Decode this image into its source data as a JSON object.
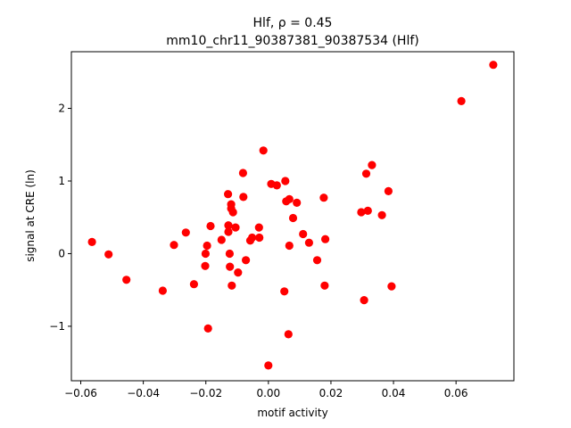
{
  "chart_data": {
    "type": "scatter",
    "title_line1": "Hlf, ρ = 0.45",
    "title_line2": "mm10_chr11_90387381_90387534 (Hlf)",
    "xlabel": "motif activity",
    "ylabel": "signal at CRE (ln)",
    "xlim": [
      -0.063,
      0.0785
    ],
    "ylim": [
      -1.75,
      2.78
    ],
    "xticks": [
      -0.06,
      -0.04,
      -0.02,
      0.0,
      0.02,
      0.04,
      0.06
    ],
    "xtick_labels": [
      "−0.06",
      "−0.04",
      "−0.02",
      "0.00",
      "0.02",
      "0.04",
      "0.06"
    ],
    "yticks": [
      -1,
      0,
      1,
      2
    ],
    "ytick_labels": [
      "−1",
      "0",
      "1",
      "2"
    ],
    "grid": false,
    "marker_color": "#ff0000",
    "points": [
      {
        "x": -0.0564,
        "y": 0.16
      },
      {
        "x": -0.0511,
        "y": -0.01
      },
      {
        "x": -0.0454,
        "y": -0.36
      },
      {
        "x": -0.0338,
        "y": -0.51
      },
      {
        "x": -0.0302,
        "y": 0.12
      },
      {
        "x": -0.0264,
        "y": 0.29
      },
      {
        "x": -0.0238,
        "y": -0.42
      },
      {
        "x": -0.0202,
        "y": -0.17
      },
      {
        "x": -0.0201,
        "y": 0.0
      },
      {
        "x": -0.0196,
        "y": 0.11
      },
      {
        "x": -0.0193,
        "y": -1.03
      },
      {
        "x": -0.0185,
        "y": 0.38
      },
      {
        "x": -0.015,
        "y": 0.19
      },
      {
        "x": -0.0129,
        "y": 0.82
      },
      {
        "x": -0.0128,
        "y": 0.39
      },
      {
        "x": -0.0128,
        "y": 0.3
      },
      {
        "x": -0.0124,
        "y": 0.0
      },
      {
        "x": -0.0123,
        "y": -0.18
      },
      {
        "x": -0.0119,
        "y": 0.68
      },
      {
        "x": -0.0119,
        "y": 0.62
      },
      {
        "x": -0.0117,
        "y": -0.44
      },
      {
        "x": -0.0113,
        "y": 0.57
      },
      {
        "x": -0.0105,
        "y": 0.36
      },
      {
        "x": -0.0097,
        "y": -0.26
      },
      {
        "x": -0.0081,
        "y": 1.11
      },
      {
        "x": -0.008,
        "y": 0.78
      },
      {
        "x": -0.0072,
        "y": -0.09
      },
      {
        "x": -0.0058,
        "y": 0.18
      },
      {
        "x": -0.0052,
        "y": 0.22
      },
      {
        "x": -0.003,
        "y": 0.36
      },
      {
        "x": -0.0029,
        "y": 0.22
      },
      {
        "x": -0.0016,
        "y": 1.42
      },
      {
        "x": 0.0,
        "y": -1.54
      },
      {
        "x": 0.0009,
        "y": 0.96
      },
      {
        "x": 0.0027,
        "y": 0.94
      },
      {
        "x": 0.0051,
        "y": -0.52
      },
      {
        "x": 0.0054,
        "y": 1.0
      },
      {
        "x": 0.0057,
        "y": 0.72
      },
      {
        "x": 0.0064,
        "y": -1.11
      },
      {
        "x": 0.0067,
        "y": 0.75
      },
      {
        "x": 0.0067,
        "y": 0.11
      },
      {
        "x": 0.0079,
        "y": 0.49
      },
      {
        "x": 0.0091,
        "y": 0.7
      },
      {
        "x": 0.0111,
        "y": 0.27
      },
      {
        "x": 0.013,
        "y": 0.15
      },
      {
        "x": 0.0156,
        "y": -0.09
      },
      {
        "x": 0.0177,
        "y": 0.77
      },
      {
        "x": 0.018,
        "y": -0.44
      },
      {
        "x": 0.0182,
        "y": 0.2
      },
      {
        "x": 0.0297,
        "y": 0.57
      },
      {
        "x": 0.0306,
        "y": -0.64
      },
      {
        "x": 0.0313,
        "y": 1.1
      },
      {
        "x": 0.0318,
        "y": 0.59
      },
      {
        "x": 0.0331,
        "y": 1.22
      },
      {
        "x": 0.0363,
        "y": 0.53
      },
      {
        "x": 0.0384,
        "y": 0.86
      },
      {
        "x": 0.0394,
        "y": -0.45
      },
      {
        "x": 0.0617,
        "y": 2.1
      },
      {
        "x": 0.0719,
        "y": 2.6
      }
    ]
  }
}
